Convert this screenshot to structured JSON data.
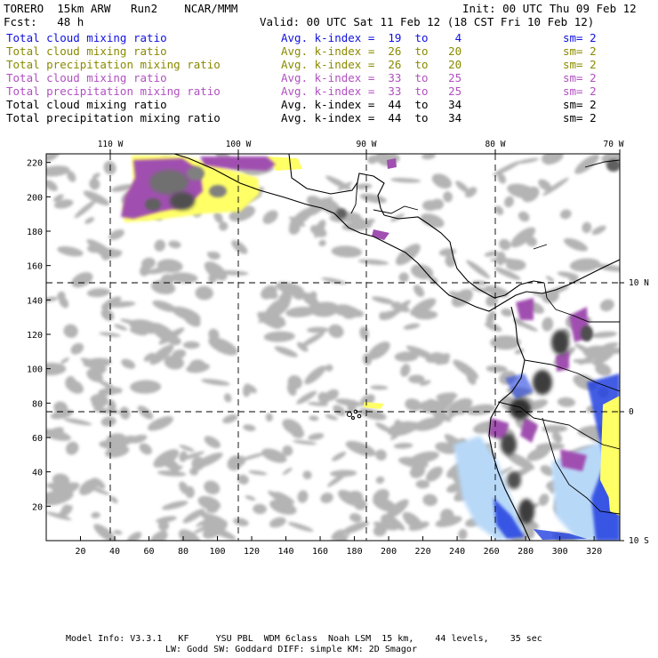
{
  "header": {
    "line1_left": "TORERO  15km ARW   Run2    NCAR/MMM",
    "line1_right": "Init: 00 UTC Thu 09 Feb 12",
    "line2_left": "Fcst:   48 h",
    "line2_right": "Valid: 00 UTC Sat 11 Feb 12 (18 CST Fri 10 Feb 12)"
  },
  "legend": [
    {
      "field": "Total cloud mixing ratio",
      "kidx": "Avg. k-index =  19  to    4",
      "sm": "sm= 2",
      "color": "#1010e0"
    },
    {
      "field": "Total cloud mixing ratio",
      "kidx": "Avg. k-index =  26  to   20",
      "sm": "sm= 2",
      "color": "#8a8a00"
    },
    {
      "field": "Total precipitation mixing ratio",
      "kidx": "Avg. k-index =  26  to   20",
      "sm": "sm= 2",
      "color": "#8a8a00"
    },
    {
      "field": "Total cloud mixing ratio",
      "kidx": "Avg. k-index =  33  to   25",
      "sm": "sm= 2",
      "color": "#b050c0"
    },
    {
      "field": "Total precipitation mixing ratio",
      "kidx": "Avg. k-index =  33  to   25",
      "sm": "sm= 2",
      "color": "#b050c0"
    },
    {
      "field": "Total cloud mixing ratio",
      "kidx": "Avg. k-index =  44  to   34",
      "sm": "sm= 2",
      "color": "#000000"
    },
    {
      "field": "Total precipitation mixing ratio",
      "kidx": "Avg. k-index =  44  to   34",
      "sm": "sm= 2",
      "color": "#000000"
    }
  ],
  "map": {
    "lon_labels": [
      "110 W",
      "100 W",
      "90 W",
      "80 W",
      "70 W"
    ],
    "lat_labels": [
      "10 N",
      "0",
      "10 S"
    ],
    "y_ticks": [
      "220",
      "200",
      "180",
      "160",
      "140",
      "120",
      "100",
      "80",
      "60",
      "40",
      "20"
    ],
    "x_ticks": [
      "20",
      "40",
      "60",
      "80",
      "100",
      "120",
      "140",
      "160",
      "180",
      "200",
      "220",
      "240",
      "260",
      "280",
      "300",
      "320"
    ],
    "colors": {
      "gray_cloud": "#b4b4b4",
      "dark_cloud": "#3c3c3c",
      "purple": "#a050b0",
      "yellow": "#ffff66",
      "light_blue": "#b8d8f8",
      "blue": "#2040e0",
      "coast": "#000000"
    }
  },
  "footer": {
    "line1": "Model Info: V3.3.1   KF     YSU PBL  WDM 6class  Noah LSM  15 km,    44 levels,    35 sec",
    "line2": "LW: Godd SW: Goddard DIFF: simple KM: 2D Smagor"
  }
}
